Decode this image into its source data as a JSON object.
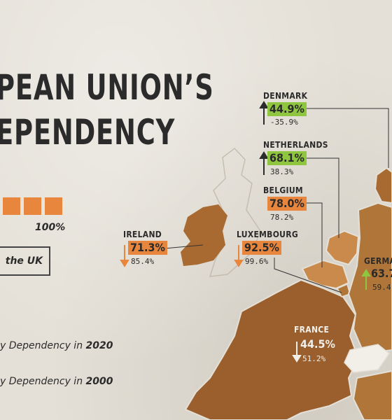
{
  "title": {
    "line1": "PEAN UNION’S",
    "line2": "EPENDENCY"
  },
  "scale": {
    "max_label": "100%"
  },
  "uk_note": "the UK",
  "legend": {
    "y2020_prefix": "y Dependency in ",
    "y2020_year": "2020",
    "y2000_prefix": "y Dependency in ",
    "y2000_year": "2000"
  },
  "colors": {
    "high": "#e9863d",
    "low": "#8ec63f",
    "land_dark": "#9a5f2c",
    "land_mid": "#b07538",
    "land_light": "#c98a4b"
  },
  "countries": [
    {
      "name": "DENMARK",
      "value_2020": "44.9%",
      "value_2000": "-35.9%",
      "trend": "up",
      "box": "green"
    },
    {
      "name": "NETHERLANDS",
      "value_2020": "68.1%",
      "value_2000": "38.3%",
      "trend": "up",
      "box": "green"
    },
    {
      "name": "BELGIUM",
      "value_2020": "78.0%",
      "value_2000": "78.2%",
      "trend": "none",
      "box": "orange"
    },
    {
      "name": "IRELAND",
      "value_2020": "71.3%",
      "value_2000": "85.4%",
      "trend": "down",
      "box": "orange"
    },
    {
      "name": "LUXEMBOURG",
      "value_2020": "92.5%",
      "value_2000": "99.6%",
      "trend": "down",
      "box": "orange"
    },
    {
      "name": "GERMA",
      "value_2020": "63.7",
      "value_2000": "59.4",
      "trend": "up",
      "box": "plain"
    },
    {
      "name": "FRANCE",
      "value_2020": "44.5%",
      "value_2000": "51.2%",
      "trend": "down",
      "box": "plain"
    }
  ]
}
